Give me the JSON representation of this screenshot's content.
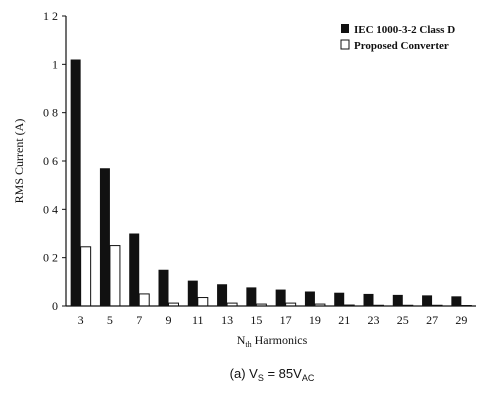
{
  "chart_data": {
    "type": "bar",
    "categories": [
      "3",
      "5",
      "7",
      "9",
      "11",
      "13",
      "15",
      "17",
      "19",
      "21",
      "23",
      "25",
      "27",
      "29"
    ],
    "series": [
      {
        "name": "IEC 1000-3-2 Class D",
        "color": "#111111",
        "values": [
          1.02,
          0.57,
          0.3,
          0.15,
          0.105,
          0.09,
          0.077,
          0.068,
          0.06,
          0.055,
          0.05,
          0.046,
          0.044,
          0.04
        ]
      },
      {
        "name": "Proposed Converter",
        "color": "#ffffff",
        "values": [
          0.245,
          0.25,
          0.05,
          0.012,
          0.035,
          0.012,
          0.008,
          0.012,
          0.008,
          0.004,
          0.003,
          0.003,
          0.003,
          0.002
        ]
      }
    ],
    "yticks": [
      "0",
      "0 2",
      "0 4",
      "0 6",
      "0 8",
      "1",
      "1 2"
    ],
    "ytick_values": [
      0,
      0.2,
      0.4,
      0.6,
      0.8,
      1.0,
      1.2
    ],
    "ylim": [
      0,
      1.2
    ],
    "ylabel": "RMS Current (A)",
    "xlabel_main": "N",
    "xlabel_sub": "th",
    "xlabel_rest": " Harmonics",
    "legend_position": "top-right",
    "grid": false
  },
  "caption": {
    "prefix": "(a) V",
    "sub1": "S",
    "mid": " = 85V",
    "sub2": "AC"
  }
}
